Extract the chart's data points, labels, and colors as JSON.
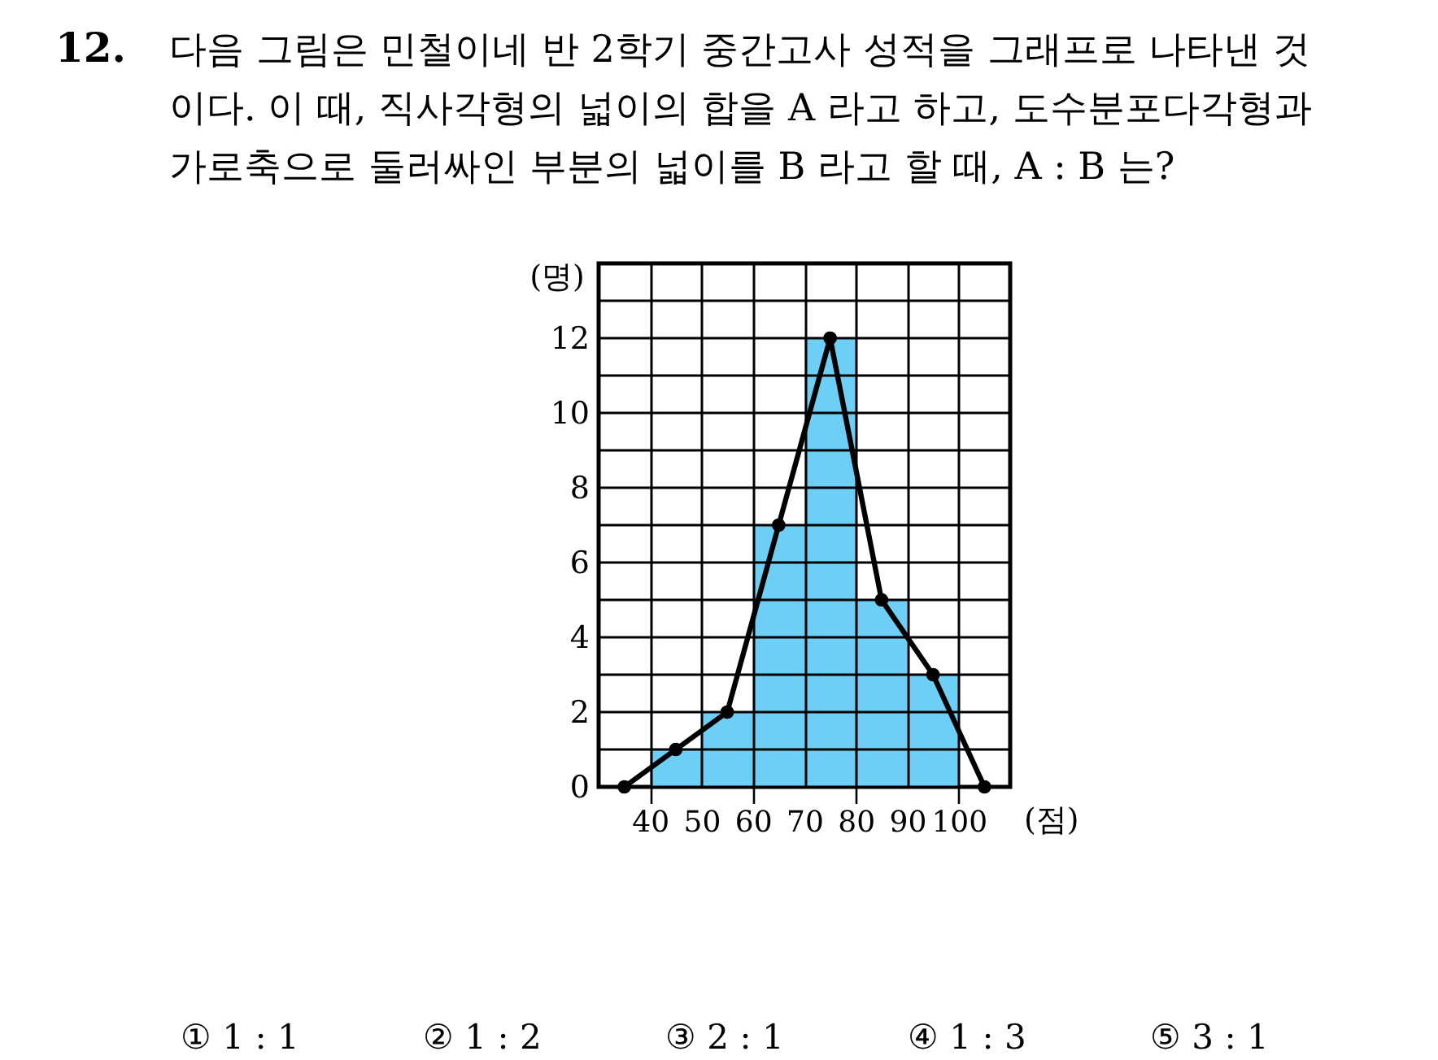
{
  "chart_data": {
    "type": "histogram",
    "title": "다음 그림은 민철이네 반 2학기 중간고사 성적을 그래프로 나타낸 것\n이다. 이 때, 직사각형의 넓이의 합을 A 라고 하고, 도수분포다각형과\n가로축으로 둘러싸인 부분의 넓이를 B 라고 할 때, A : B 는?",
    "annotations": [
      "12.",
      "① 1 : 1",
      "② 1 : 2",
      "③ 2 : 1",
      "④ 1 : 3",
      "⑤ 3 : 1"
    ],
    "xlabel": "(점)",
    "ylabel": "(명)",
    "series": [
      {
        "bins": [
          40,
          50,
          60,
          70,
          80,
          90,
          100
        ],
        "values": [
          1,
          2,
          7,
          12,
          5,
          3
        ],
        "color": "#6dcff6"
      },
      {
        "type": "line",
        "x": [
          35,
          45,
          55,
          65,
          75,
          85,
          95,
          105
        ],
        "values": [
          0,
          1,
          2,
          7,
          12,
          5,
          3,
          0
        ],
        "color": "#000000"
      }
    ],
    "marker": "circle",
    "xlim": [
      30,
      110
    ],
    "xticks": [
      40,
      50,
      60,
      70,
      80,
      90,
      100
    ],
    "ylim": [
      0,
      14
    ],
    "yticks": [
      0,
      {
        "value": 1,
        "label": null
      },
      2,
      {
        "value": 3,
        "label": null
      },
      4,
      {
        "value": 5,
        "label": null
      },
      6,
      {
        "value": 7,
        "label": null
      },
      8,
      {
        "value": 9,
        "label": null
      },
      10,
      {
        "value": 11,
        "label": null
      },
      12,
      {
        "value": 13,
        "label": null
      }
    ],
    "grid": true
  }
}
